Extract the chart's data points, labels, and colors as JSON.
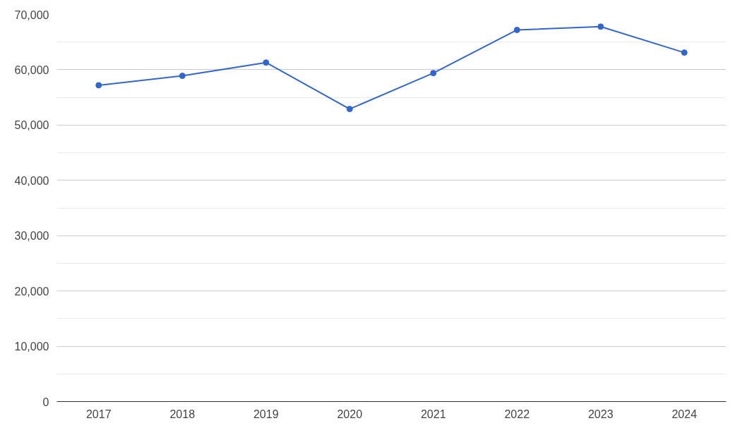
{
  "chart_data": {
    "type": "line",
    "categories": [
      "2017",
      "2018",
      "2019",
      "2020",
      "2021",
      "2022",
      "2023",
      "2024"
    ],
    "series": [
      {
        "color": "#3366cc",
        "values": [
          57200,
          58900,
          61300,
          52900,
          59400,
          67200,
          67800,
          63100
        ]
      }
    ],
    "ylim": [
      0,
      70000
    ],
    "yticks": [
      {
        "value": 0,
        "label": "0"
      },
      {
        "value": 5000,
        "label": null
      },
      {
        "value": 10000,
        "label": "10,000"
      },
      {
        "value": 15000,
        "label": null
      },
      {
        "value": 20000,
        "label": "20,000"
      },
      {
        "value": 25000,
        "label": null
      },
      {
        "value": 30000,
        "label": "30,000"
      },
      {
        "value": 35000,
        "label": null
      },
      {
        "value": 40000,
        "label": "40,000"
      },
      {
        "value": 45000,
        "label": null
      },
      {
        "value": 50000,
        "label": "50,000"
      },
      {
        "value": 55000,
        "label": null
      },
      {
        "value": 60000,
        "label": "60,000"
      },
      {
        "value": 65000,
        "label": null
      },
      {
        "value": 70000,
        "label": "70,000"
      }
    ],
    "grid": "y",
    "marker": "circle",
    "line_style": "solid"
  }
}
